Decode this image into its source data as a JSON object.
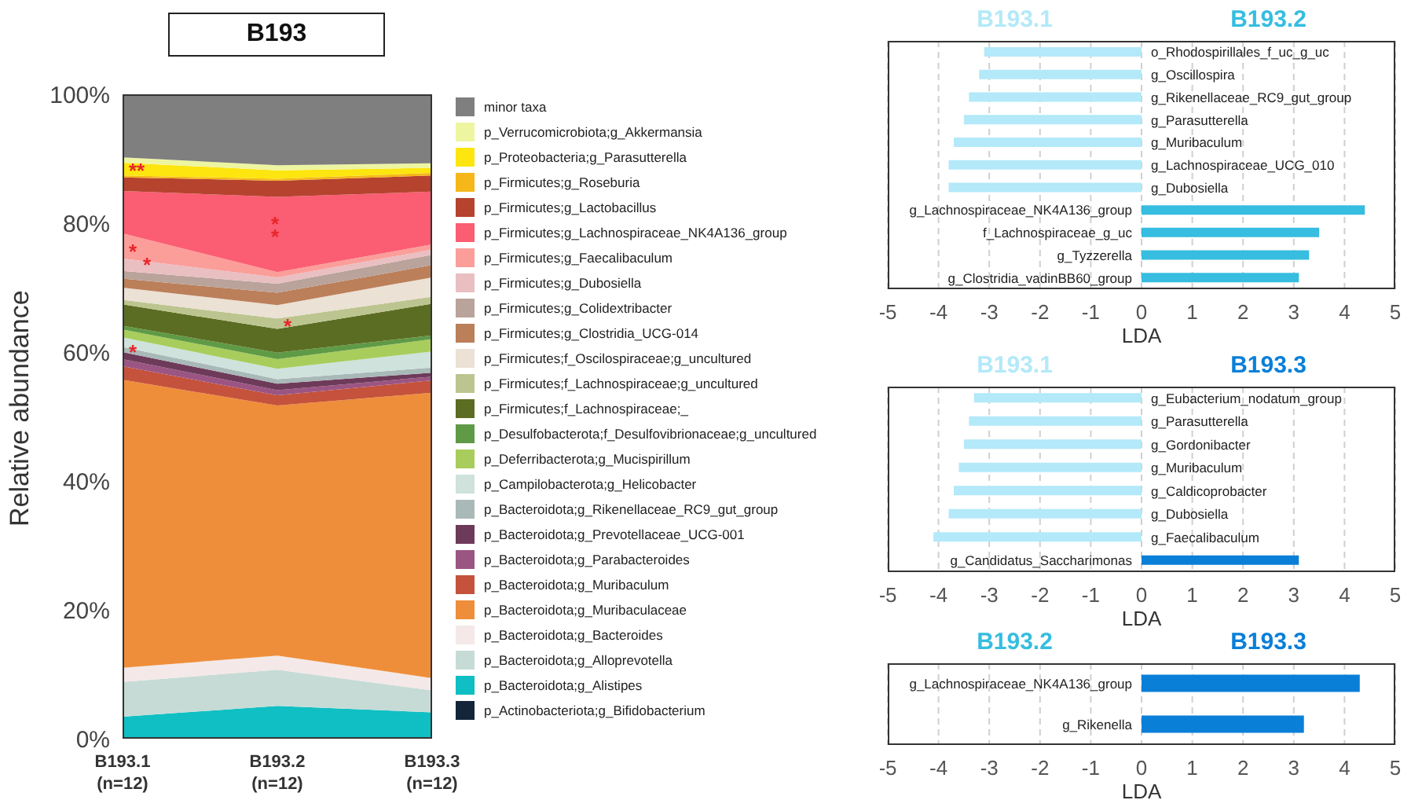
{
  "chart_data": [
    {
      "type": "area",
      "title": "B193",
      "ylabel": "Relative abundance",
      "stacked": true,
      "legend": "right",
      "categories": [
        "B193.1 (n=12)",
        "B193.2 (n=12)",
        "B193.3 (n=12)"
      ],
      "ylim": [
        0,
        100
      ],
      "yticks": [
        {
          "value": 0,
          "label": "0%"
        },
        {
          "value": 20,
          "label": "20%"
        },
        {
          "value": 40,
          "label": "40%"
        },
        {
          "value": 60,
          "label": "60%"
        },
        {
          "value": 80,
          "label": "80%"
        },
        {
          "value": 100,
          "label": "100%"
        }
      ],
      "series": [
        {
          "name": "p_Actinobacteriota;g_Bifidobacterium",
          "color": "#14253a",
          "values": [
            null,
            null,
            null
          ]
        },
        {
          "name": "p_Bacteroidota;g_Alistipes",
          "color": "#0fbfc4",
          "values": [
            3.4,
            5.1,
            4.1
          ]
        },
        {
          "name": "p_Bacteroidota;g_Alloprevotella",
          "color": "#c6dbd6",
          "values": [
            5.4,
            5.6,
            3.4
          ]
        },
        {
          "name": "p_Bacteroidota;g_Bacteroides",
          "color": "#f4e9e8",
          "values": [
            2.2,
            2.2,
            1.9
          ]
        },
        {
          "name": "p_Bacteroidota;g_Muribaculaceae",
          "color": "#ef8e3a",
          "values": [
            44.7,
            38.8,
            44.3
          ]
        },
        {
          "name": "p_Bacteroidota;g_Muribaculum",
          "color": "#c5523c",
          "values": [
            2.1,
            1.6,
            1.9
          ]
        },
        {
          "name": "p_Bacteroidota;g_Parabacteroides",
          "color": "#9b5583",
          "values": [
            1.1,
            0.8,
            0.6
          ]
        },
        {
          "name": "p_Bacteroidota;g_Prevotellaceae_UCG-001",
          "color": "#6e3a5a",
          "values": [
            1.1,
            1.0,
            0.6
          ]
        },
        {
          "name": "p_Bacteroidota;g_Rikenellaceae_RC9_gut_group",
          "color": "#a9b9b7",
          "values": [
            0.8,
            0.7,
            0.8
          ]
        },
        {
          "name": "p_Campilobacterota;g_Helicobacter",
          "color": "#cfe2dc",
          "values": [
            1.5,
            1.6,
            2.5
          ]
        },
        {
          "name": "p_Deferribacterota;g_Mucispirillum",
          "color": "#a8cd5c",
          "values": [
            1.2,
            1.5,
            1.9
          ]
        },
        {
          "name": "p_Desulfobacterota;f_Desulfovibrionaceae;g_uncultured",
          "color": "#5f9a46",
          "values": [
            0.6,
            1.0,
            0.6
          ]
        },
        {
          "name": "p_Firmicutes;f_Lachnospiraceae;_",
          "color": "#5b6d22",
          "values": [
            3.3,
            3.7,
            4.9
          ]
        },
        {
          "name": "p_Firmicutes;f_Lachnospiraceae;g_uncultured",
          "color": "#bcc58f",
          "values": [
            0.7,
            1.6,
            1.1
          ]
        },
        {
          "name": "p_Firmicutes;f_Oscilospiraceae;g_uncultured",
          "color": "#ebe1d4",
          "values": [
            1.9,
            2.1,
            3.0
          ]
        },
        {
          "name": "p_Firmicutes;g_Clostridia_UCG-014",
          "color": "#bb7f5a",
          "values": [
            1.4,
            1.9,
            1.9
          ]
        },
        {
          "name": "p_Firmicutes;g_Colidextribacter",
          "color": "#b9a39a",
          "values": [
            1.2,
            1.4,
            1.6
          ]
        },
        {
          "name": "p_Firmicutes;g_Dubosiella",
          "color": "#e9bfc2",
          "values": [
            1.9,
            1.0,
            0.8
          ]
        },
        {
          "name": "p_Firmicutes;g_Faecalibaculum",
          "color": "#fb9e9a",
          "values": [
            3.9,
            0.8,
            0.8
          ]
        },
        {
          "name": "p_Firmicutes;g_Lachnospiraceae_NK4A136_group",
          "color": "#fb5d72",
          "values": [
            6.6,
            11.7,
            8.2
          ]
        },
        {
          "name": "p_Firmicutes;g_Lactobacillus",
          "color": "#b5432e",
          "values": [
            2.1,
            2.5,
            2.5
          ]
        },
        {
          "name": "p_Firmicutes;g_Roseburia",
          "color": "#f5b719",
          "values": [
            0.3,
            0.3,
            0.4
          ]
        },
        {
          "name": "p_Proteobacteria;g_Parasutterella",
          "color": "#fde50f",
          "values": [
            2.0,
            1.3,
            0.8
          ]
        },
        {
          "name": "p_Verrucomicrobiota;g_Akkermansia",
          "color": "#eef5a0",
          "values": [
            0.8,
            0.8,
            0.7
          ]
        },
        {
          "name": "minor taxa",
          "color": "#7f7f7f",
          "values": [
            9.8,
            11.0,
            10.7
          ]
        }
      ],
      "annotations": [
        {
          "text": "**",
          "x": "B193.1 (n=12)",
          "y": 88.3
        },
        {
          "text": "*",
          "x": "B193.1 (n=12)",
          "y": 75.7
        },
        {
          "text": "*",
          "x": "B193.1 (n=12)",
          "y": 73.7
        },
        {
          "text": "*",
          "x": "B193.1 (n=12)",
          "y": 60.1
        },
        "*",
        "*",
        {
          "text": "*",
          "x": "B193.2 (n=12)",
          "y": 64.2
        }
      ]
    },
    {
      "type": "bar",
      "orientation": "horizontal",
      "stacked": true,
      "xlabel": "LDA",
      "legend": "top",
      "grid": "x",
      "xlim": [
        -5,
        5
      ],
      "xticks": [
        -5,
        -4,
        -3,
        -2,
        -1,
        0,
        1,
        2,
        3,
        4,
        5
      ],
      "categories": [
        "o_Rhodospirillales_f_uc_g_uc",
        "g_Oscillospira",
        "g_Rikenellaceae_RC9_gut_group",
        "g_Parasutterella",
        "g_Muribaculum",
        "g_Lachnospiraceae_UCG_010",
        "g_Dubosiella",
        "g_Lachnospiraceae_NK4A136_group",
        "f_Lachnospiraceae_g_uc",
        "g_Tyzzerella",
        "g_Clostridia_vadinBB60_group"
      ],
      "series": [
        {
          "name": "B193.1",
          "color": "#b3e9f9",
          "values": [
            -3.1,
            -3.2,
            -3.4,
            -3.5,
            -3.7,
            -3.8,
            -3.8,
            null,
            null,
            null,
            null
          ]
        },
        {
          "name": "B193.2",
          "color": "#36bde0",
          "values": [
            null,
            null,
            null,
            null,
            null,
            null,
            null,
            4.4,
            3.5,
            3.3,
            3.1
          ]
        }
      ]
    },
    {
      "type": "bar",
      "orientation": "horizontal",
      "stacked": true,
      "xlabel": "LDA",
      "legend": "top",
      "grid": "x",
      "xlim": [
        -5,
        5
      ],
      "xticks": [
        -5,
        -4,
        -3,
        -2,
        -1,
        0,
        1,
        2,
        3,
        4,
        5
      ],
      "categories": [
        "g_Eubacterium_nodatum_group",
        "g_Parasutterella",
        "g_Gordonibacter",
        "g_Muribaculum",
        "g_Caldicoprobacter",
        "g_Dubosiella",
        "g_Faecalibaculum",
        "g_Candidatus_Saccharimonas"
      ],
      "series": [
        {
          "name": "B193.1",
          "color": "#b3e9f9",
          "values": [
            -3.3,
            -3.4,
            -3.5,
            -3.6,
            -3.7,
            -3.8,
            -4.1,
            null
          ]
        },
        {
          "name": "B193.3",
          "color": "#0a7fd8",
          "values": [
            null,
            null,
            null,
            null,
            null,
            null,
            null,
            3.1
          ]
        }
      ]
    },
    {
      "type": "bar",
      "orientation": "horizontal",
      "stacked": true,
      "xlabel": "LDA",
      "legend": "top",
      "grid": "x",
      "xlim": [
        -5,
        5
      ],
      "xticks": [
        -5,
        -4,
        -3,
        -2,
        -1,
        0,
        1,
        2,
        3,
        4,
        5
      ],
      "categories": [
        "g_Lachnospiraceae_NK4A136_group",
        "g_Rikenella"
      ],
      "series": [
        {
          "name": "B193.2",
          "color": "#36bde0",
          "values": [
            null,
            null
          ]
        },
        {
          "name": "B193.3",
          "color": "#0a7fd8",
          "values": [
            4.3,
            3.2
          ]
        }
      ]
    }
  ]
}
